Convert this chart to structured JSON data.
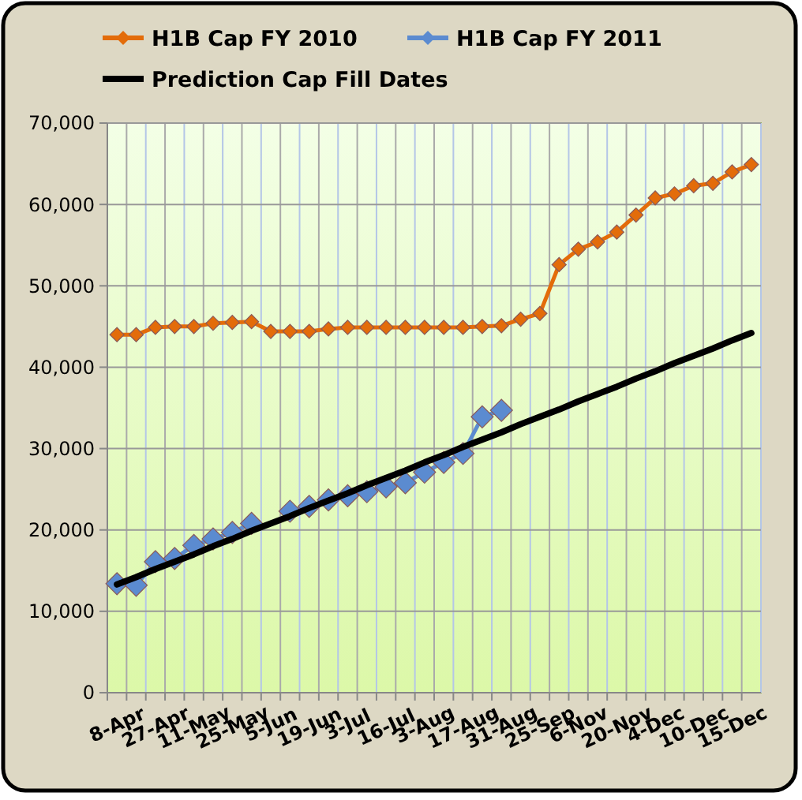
{
  "chart_data": {
    "type": "line",
    "categories": [
      "8-Apr",
      null,
      "27-Apr",
      null,
      "11-May",
      null,
      "25-May",
      null,
      "5-Jun",
      null,
      "19-Jun",
      null,
      "3-Jul",
      null,
      "16-Jul",
      null,
      "3-Aug",
      null,
      "17-Aug",
      null,
      "31-Aug",
      null,
      "25-Sep",
      null,
      "6-Nov",
      null,
      "20-Nov",
      null,
      "4-Dec",
      null,
      "10-Dec",
      null,
      "15-Dec",
      null
    ],
    "series": [
      {
        "name": "H1B Cap FY 2010",
        "color": "#e36c0a",
        "marker": "diamond",
        "values": [
          44000,
          44000,
          44900,
          45000,
          45000,
          45400,
          45500,
          45600,
          44400,
          44400,
          44400,
          44700,
          44900,
          44900,
          44900,
          44900,
          44900,
          44900,
          44900,
          45000,
          45100,
          45900,
          46600,
          52600,
          54500,
          55400,
          56600,
          58700,
          60800,
          61300,
          62300,
          62600,
          64000,
          64900
        ]
      },
      {
        "name": "H1B Cap FY 2011",
        "color": "#5b8bd0",
        "marker": "diamond",
        "values": [
          13400,
          13200,
          16100,
          16500,
          18100,
          18900,
          19700,
          20800,
          null,
          22300,
          22900,
          23700,
          24200,
          24700,
          25300,
          25800,
          27100,
          28300,
          29400,
          33900,
          34700,
          null,
          null,
          null,
          null,
          null,
          null,
          null,
          null,
          null,
          null,
          null,
          null,
          null
        ]
      },
      {
        "name": "Prediction Cap Fill Dates",
        "color": "#000000",
        "marker": "none",
        "values": [
          13300,
          14200,
          15200,
          16100,
          17000,
          18000,
          18900,
          19900,
          20800,
          21700,
          22700,
          23600,
          24500,
          25500,
          26400,
          27300,
          28300,
          29200,
          30200,
          31100,
          32000,
          33000,
          33900,
          34800,
          35800,
          36700,
          37600,
          38600,
          39500,
          40500,
          41400,
          42300,
          43300,
          44200
        ]
      }
    ],
    "ylim": [
      0,
      70000
    ],
    "yticks": [
      {
        "value": 0,
        "label": "0"
      },
      {
        "value": 10000,
        "label": "10,000"
      },
      {
        "value": 20000,
        "label": "20,000"
      },
      {
        "value": 30000,
        "label": "30,000"
      },
      {
        "value": 40000,
        "label": "40,000"
      },
      {
        "value": 50000,
        "label": "50,000"
      },
      {
        "value": 60000,
        "label": "60,000"
      },
      {
        "value": 70000,
        "label": "70,000"
      }
    ],
    "grid": true,
    "legend": "top"
  }
}
